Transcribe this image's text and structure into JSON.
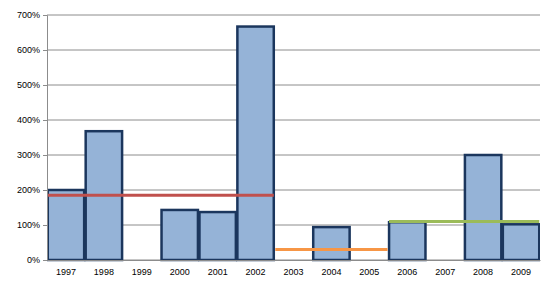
{
  "chart_data": {
    "type": "bar",
    "categories": [
      "1997",
      "1998",
      "1999",
      "2000",
      "2001",
      "2002",
      "2003",
      "2004",
      "2005",
      "2006",
      "2007",
      "2008",
      "2009"
    ],
    "series": [
      {
        "type": "bar",
        "color": "#95b3d7",
        "values": [
          200,
          368,
          0,
          143,
          137,
          667,
          0,
          94,
          0,
          108,
          0,
          300,
          102
        ]
      },
      {
        "type": "line",
        "color": "#c0504d",
        "values": [
          185,
          185,
          185,
          185,
          185,
          185,
          null,
          null,
          null,
          null,
          null,
          null,
          null
        ]
      },
      {
        "type": "line",
        "color": "#f79646",
        "values": [
          null,
          null,
          null,
          null,
          null,
          null,
          30,
          30,
          30,
          null,
          null,
          null,
          null
        ]
      },
      {
        "type": "line",
        "color": "#9bbb59",
        "values": [
          null,
          null,
          null,
          null,
          null,
          null,
          null,
          null,
          null,
          110,
          110,
          110,
          110
        ]
      }
    ],
    "ylim": [
      0,
      700
    ],
    "yticks": [
      {
        "value": 0,
        "label": "0%"
      },
      {
        "value": 100,
        "label": "100%"
      },
      {
        "value": 200,
        "label": "200%"
      },
      {
        "value": 300,
        "label": "300%"
      },
      {
        "value": 400,
        "label": "400%"
      },
      {
        "value": 500,
        "label": "500%"
      },
      {
        "value": 600,
        "label": "600%"
      },
      {
        "value": 700,
        "label": "700%"
      }
    ],
    "grid": true
  }
}
